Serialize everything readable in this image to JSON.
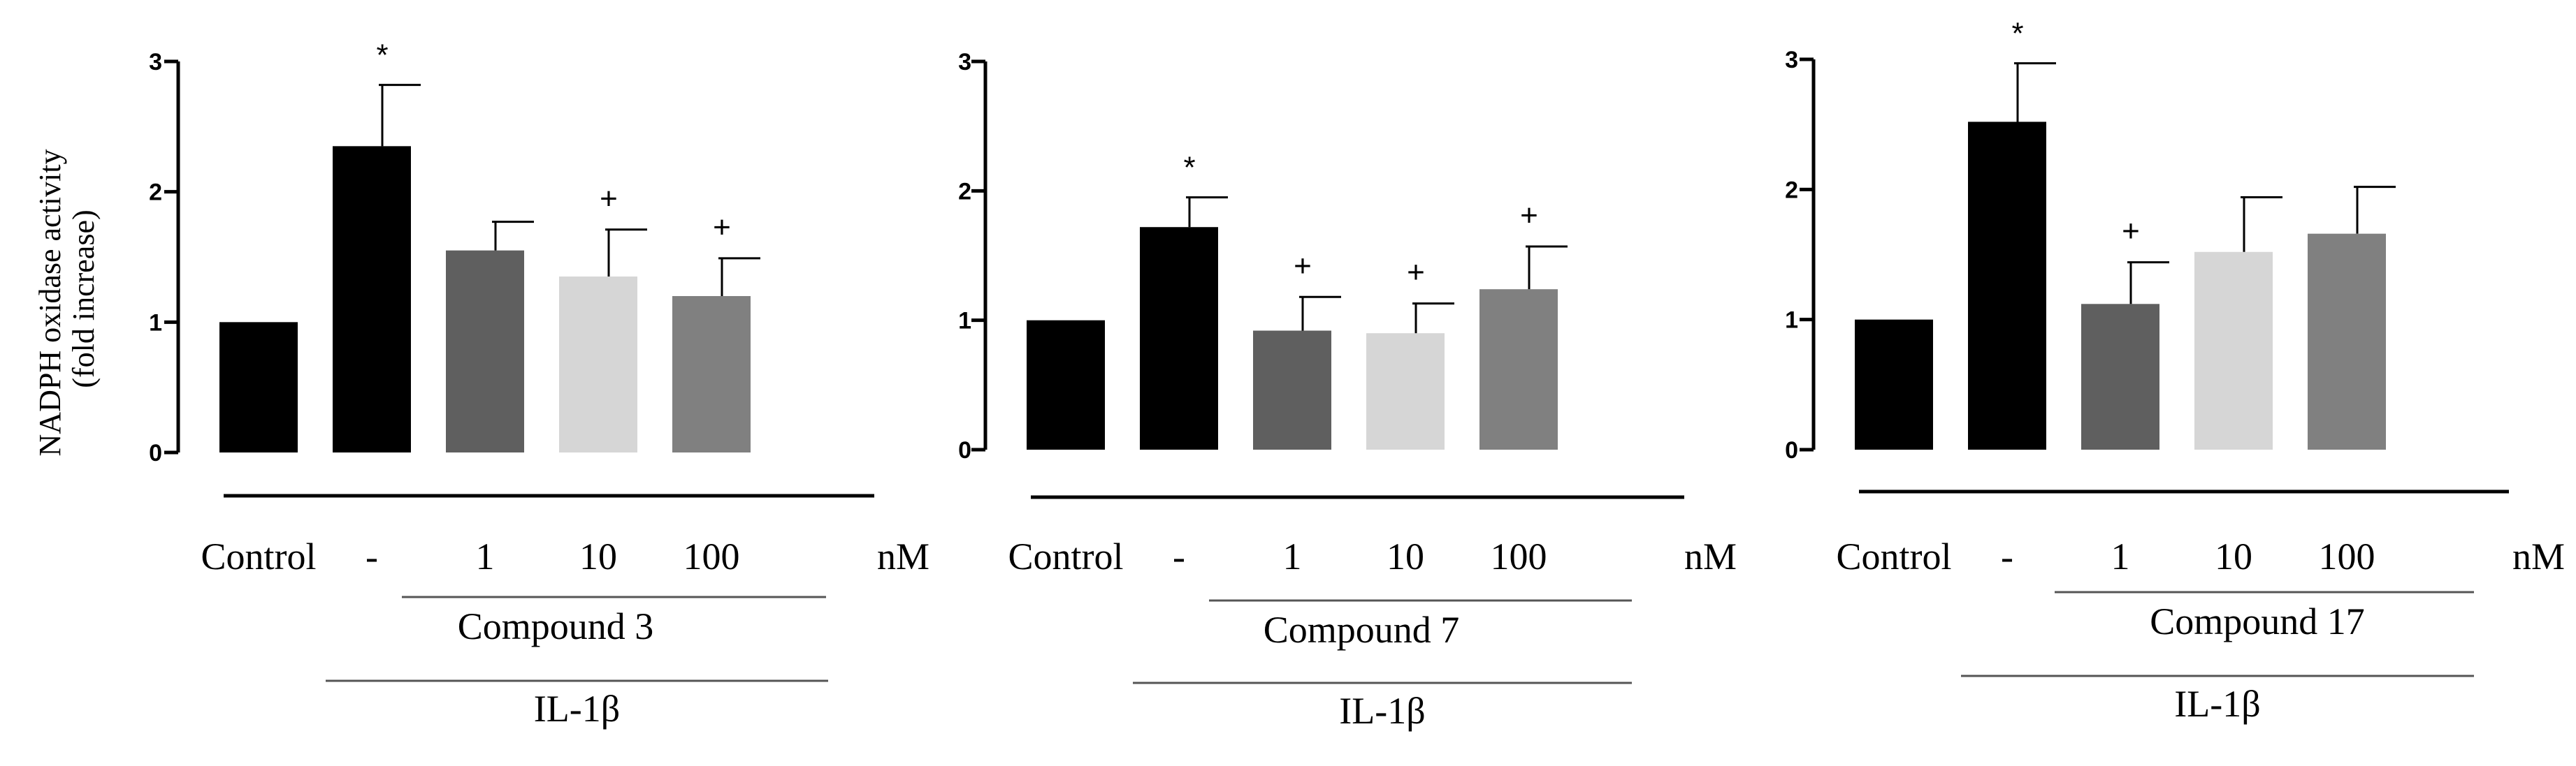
{
  "figure": {
    "ylabel_line1": "NADPH oxidase activity",
    "ylabel_line2": "(fold increase)",
    "unit": "nM",
    "ticks": [
      "0",
      "1",
      "2",
      "3"
    ]
  },
  "chart_data": [
    {
      "type": "bar",
      "ylabel": "NADPH oxidase activity (fold increase)",
      "ylim": [
        0,
        3
      ],
      "categories": [
        "Control",
        "-",
        "1",
        "10",
        "100"
      ],
      "values": [
        1.0,
        2.35,
        1.55,
        1.35,
        1.2
      ],
      "errors": [
        0,
        0.47,
        0.22,
        0.36,
        0.29
      ],
      "significance": [
        "",
        "*",
        "",
        "+",
        "+"
      ],
      "colors": [
        "#000000",
        "#000000",
        "#5f5f5f",
        "#d6d6d6",
        "#808080"
      ],
      "compound_label": "Compound 3",
      "treatment_label": "IL-1β",
      "unit": "nM"
    },
    {
      "type": "bar",
      "ylabel": "",
      "ylim": [
        0,
        3
      ],
      "categories": [
        "Control",
        "-",
        "1",
        "10",
        "100"
      ],
      "values": [
        1.0,
        1.72,
        0.92,
        0.9,
        1.24
      ],
      "errors": [
        0,
        0.23,
        0.26,
        0.23,
        0.33
      ],
      "significance": [
        "",
        "*",
        "+",
        "+",
        "+"
      ],
      "colors": [
        "#000000",
        "#000000",
        "#5f5f5f",
        "#d6d6d6",
        "#808080"
      ],
      "compound_label": "Compound 7",
      "treatment_label": "IL-1β",
      "unit": "nM"
    },
    {
      "type": "bar",
      "ylabel": "",
      "ylim": [
        0,
        3
      ],
      "categories": [
        "Control",
        "-",
        "1",
        "10",
        "100"
      ],
      "values": [
        1.0,
        2.52,
        1.12,
        1.52,
        1.66
      ],
      "errors": [
        0,
        0.45,
        0.32,
        0.42,
        0.36
      ],
      "significance": [
        "",
        "*",
        "+",
        "",
        ""
      ],
      "colors": [
        "#000000",
        "#000000",
        "#5f5f5f",
        "#d6d6d6",
        "#808080"
      ],
      "compound_label": "Compound 17",
      "treatment_label": "IL-1β",
      "unit": "nM"
    }
  ]
}
